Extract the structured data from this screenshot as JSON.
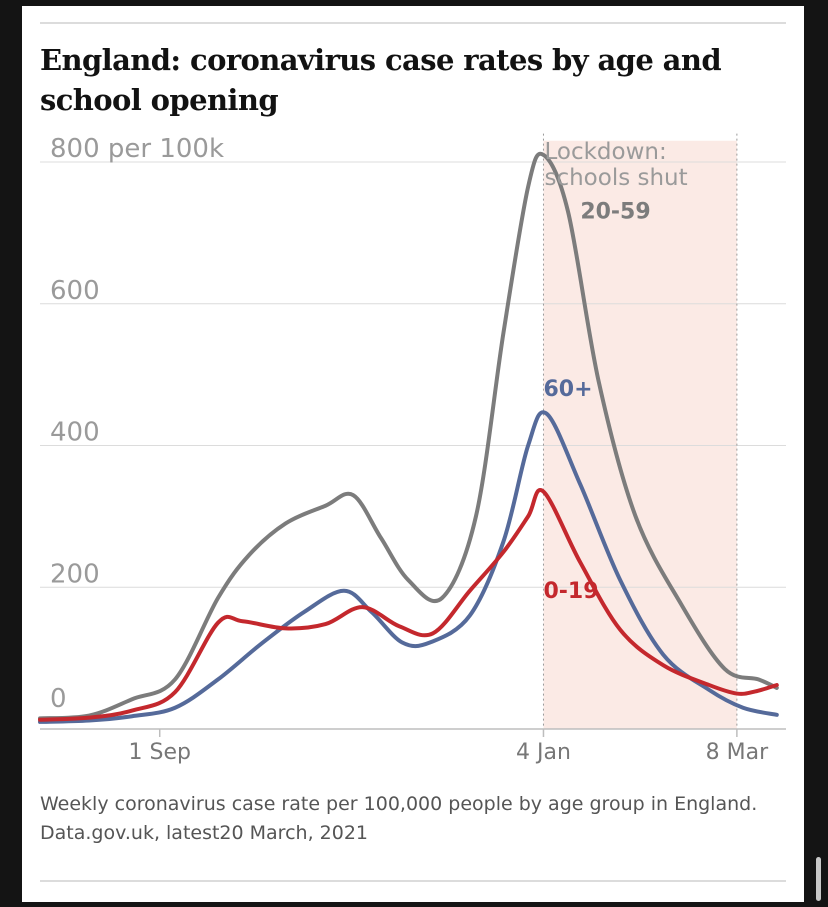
{
  "title": "England: coronavirus case rates by age and school opening",
  "caption_line1": "Weekly coronavirus case rate per 100,000 people by age group in England.",
  "caption_line2": "Data.gov.uk, latest20 March, 2021",
  "chart_data": {
    "type": "line",
    "x_label": "",
    "y_label": "",
    "y_ticks": [
      {
        "value": 800,
        "label": "800 per 100k"
      },
      {
        "value": 600,
        "label": "600"
      },
      {
        "value": 400,
        "label": "400"
      },
      {
        "value": 200,
        "label": "200"
      },
      {
        "value": 0,
        "label": "0"
      }
    ],
    "x_ticks": [
      {
        "value": "2020-09-01",
        "label": "1 Sep"
      },
      {
        "value": "2021-01-04",
        "label": "4 Jan"
      },
      {
        "value": "2021-03-08",
        "label": "8 Mar"
      }
    ],
    "ylim": [
      0,
      800
    ],
    "xlim": [
      "2020-07-24",
      "2021-03-24"
    ],
    "grid": true,
    "shaded_region": {
      "from": "2021-01-04",
      "to": "2021-03-08",
      "label_line1": "Lockdown:",
      "label_line2": "schools shut",
      "color": "#fbeae5"
    },
    "series": [
      {
        "name": "20-59",
        "color": "#7c7c7c",
        "points": [
          [
            "2020-07-24",
            15
          ],
          [
            "2020-08-09",
            19
          ],
          [
            "2020-08-23",
            42
          ],
          [
            "2020-09-06",
            70
          ],
          [
            "2020-09-20",
            185
          ],
          [
            "2020-09-30",
            245
          ],
          [
            "2020-10-12",
            290
          ],
          [
            "2020-10-25",
            315
          ],
          [
            "2020-11-03",
            330
          ],
          [
            "2020-11-12",
            270
          ],
          [
            "2020-11-21",
            210
          ],
          [
            "2020-12-02",
            185
          ],
          [
            "2020-12-13",
            300
          ],
          [
            "2020-12-22",
            560
          ],
          [
            "2020-12-30",
            765
          ],
          [
            "2021-01-04",
            810
          ],
          [
            "2021-01-12",
            730
          ],
          [
            "2021-01-22",
            490
          ],
          [
            "2021-02-03",
            300
          ],
          [
            "2021-02-18",
            175
          ],
          [
            "2021-03-04",
            85
          ],
          [
            "2021-03-15",
            70
          ],
          [
            "2021-03-21",
            58
          ]
        ]
      },
      {
        "name": "60+",
        "color": "#556a9a",
        "points": [
          [
            "2020-07-24",
            10
          ],
          [
            "2020-08-09",
            12
          ],
          [
            "2020-08-23",
            18
          ],
          [
            "2020-09-06",
            30
          ],
          [
            "2020-09-20",
            70
          ],
          [
            "2020-10-04",
            120
          ],
          [
            "2020-10-18",
            165
          ],
          [
            "2020-10-31",
            195
          ],
          [
            "2020-11-09",
            165
          ],
          [
            "2020-11-19",
            122
          ],
          [
            "2020-11-28",
            122
          ],
          [
            "2020-12-11",
            160
          ],
          [
            "2020-12-22",
            265
          ],
          [
            "2020-12-30",
            400
          ],
          [
            "2021-01-05",
            445
          ],
          [
            "2021-01-16",
            345
          ],
          [
            "2021-01-29",
            210
          ],
          [
            "2021-02-12",
            105
          ],
          [
            "2021-02-27",
            55
          ],
          [
            "2021-03-10",
            30
          ],
          [
            "2021-03-21",
            20
          ]
        ]
      },
      {
        "name": "0-19",
        "color": "#c4282d",
        "points": [
          [
            "2020-07-24",
            13
          ],
          [
            "2020-08-09",
            16
          ],
          [
            "2020-08-23",
            26
          ],
          [
            "2020-09-06",
            52
          ],
          [
            "2020-09-20",
            150
          ],
          [
            "2020-09-28",
            152
          ],
          [
            "2020-10-12",
            142
          ],
          [
            "2020-10-25",
            148
          ],
          [
            "2020-11-06",
            172
          ],
          [
            "2020-11-18",
            145
          ],
          [
            "2020-11-29",
            135
          ],
          [
            "2020-12-11",
            195
          ],
          [
            "2020-12-22",
            250
          ],
          [
            "2020-12-30",
            300
          ],
          [
            "2021-01-04",
            335
          ],
          [
            "2021-01-16",
            235
          ],
          [
            "2021-01-29",
            140
          ],
          [
            "2021-02-12",
            90
          ],
          [
            "2021-02-27",
            62
          ],
          [
            "2021-03-08",
            50
          ],
          [
            "2021-03-14",
            53
          ],
          [
            "2021-03-21",
            62
          ]
        ]
      }
    ]
  }
}
